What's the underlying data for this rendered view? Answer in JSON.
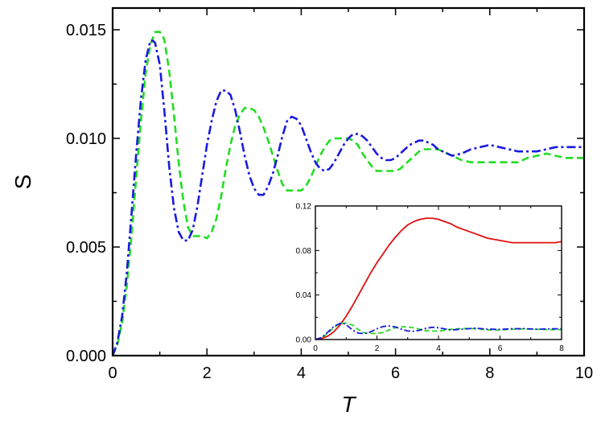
{
  "chart_data": [
    {
      "type": "line",
      "role": "main",
      "title": "",
      "xlabel": "T",
      "ylabel": "S",
      "xlim": [
        0,
        10
      ],
      "ylim": [
        0,
        0.016
      ],
      "xticks": [
        0,
        2,
        4,
        6,
        8,
        10
      ],
      "xtick_labels": [
        "0",
        "2",
        "4",
        "6",
        "8",
        "10"
      ],
      "yticks": [
        0,
        0.005,
        0.01,
        0.015
      ],
      "ytick_labels": [
        "0.000",
        "0.005",
        "0.010",
        "0.015"
      ],
      "grid": false,
      "legend": "none",
      "series": [
        {
          "color": "#22dd22",
          "style": "dashed",
          "x": [
            0,
            0.1,
            0.2,
            0.3,
            0.4,
            0.5,
            0.6,
            0.7,
            0.8,
            0.9,
            1.0,
            1.05,
            1.1,
            1.2,
            1.3,
            1.4,
            1.5,
            1.6,
            1.7,
            1.8,
            1.9,
            2.0,
            2.1,
            2.2,
            2.3,
            2.4,
            2.5,
            2.6,
            2.7,
            2.8,
            2.9,
            3.0,
            3.1,
            3.2,
            3.3,
            3.4,
            3.5,
            3.6,
            3.7,
            3.8,
            3.9,
            4.0,
            4.1,
            4.2,
            4.3,
            4.4,
            4.5,
            4.6,
            4.7,
            4.8,
            4.9,
            5.0,
            5.1,
            5.2,
            5.3,
            5.4,
            5.5,
            5.6,
            5.7,
            5.8,
            5.9,
            6.0,
            6.1,
            6.2,
            6.3,
            6.4,
            6.5,
            6.6,
            6.7,
            6.8,
            6.9,
            7.0,
            7.2,
            7.4,
            7.6,
            7.8,
            8.0,
            8.2,
            8.4,
            8.6,
            8.8,
            9.0,
            9.2,
            9.4,
            9.6,
            9.8,
            10.0
          ],
          "y": [
            0.0,
            0.0005,
            0.0015,
            0.0032,
            0.0055,
            0.0082,
            0.0108,
            0.013,
            0.0143,
            0.0149,
            0.0149,
            0.0148,
            0.0145,
            0.0131,
            0.0111,
            0.0089,
            0.0071,
            0.0059,
            0.0055,
            0.0055,
            0.0055,
            0.0054,
            0.0057,
            0.0063,
            0.0073,
            0.0086,
            0.0097,
            0.0106,
            0.0111,
            0.0114,
            0.0114,
            0.0113,
            0.011,
            0.0105,
            0.0099,
            0.0092,
            0.0085,
            0.0079,
            0.0076,
            0.0076,
            0.0076,
            0.0076,
            0.0078,
            0.0082,
            0.0087,
            0.0092,
            0.0096,
            0.0099,
            0.01,
            0.01,
            0.01,
            0.01,
            0.0099,
            0.0097,
            0.0093,
            0.009,
            0.0087,
            0.0085,
            0.0085,
            0.0085,
            0.0085,
            0.0085,
            0.0086,
            0.0088,
            0.009,
            0.0092,
            0.0094,
            0.0095,
            0.0095,
            0.0095,
            0.0095,
            0.0094,
            0.0092,
            0.009,
            0.0089,
            0.0089,
            0.0089,
            0.0089,
            0.0089,
            0.0089,
            0.0091,
            0.0092,
            0.0093,
            0.0092,
            0.0091,
            0.0091,
            0.0091
          ]
        },
        {
          "color": "#1a1adf",
          "style": "dashdot",
          "x": [
            0,
            0.1,
            0.2,
            0.3,
            0.4,
            0.5,
            0.6,
            0.7,
            0.8,
            0.85,
            0.9,
            1.0,
            1.1,
            1.2,
            1.3,
            1.4,
            1.5,
            1.6,
            1.7,
            1.8,
            1.9,
            2.0,
            2.1,
            2.2,
            2.3,
            2.4,
            2.5,
            2.6,
            2.7,
            2.8,
            2.9,
            3.0,
            3.1,
            3.2,
            3.3,
            3.4,
            3.5,
            3.6,
            3.7,
            3.8,
            3.9,
            4.0,
            4.1,
            4.2,
            4.3,
            4.4,
            4.5,
            4.6,
            4.7,
            4.8,
            4.9,
            5.0,
            5.1,
            5.2,
            5.3,
            5.4,
            5.5,
            5.6,
            5.7,
            5.8,
            5.9,
            6.0,
            6.1,
            6.2,
            6.3,
            6.4,
            6.5,
            6.6,
            6.7,
            6.8,
            6.9,
            7.0,
            7.2,
            7.4,
            7.6,
            7.8,
            8.0,
            8.2,
            8.4,
            8.6,
            8.8,
            9.0,
            9.2,
            9.4,
            9.6,
            9.8,
            10.0
          ],
          "y": [
            0.0,
            0.0006,
            0.0018,
            0.0038,
            0.0065,
            0.0093,
            0.0118,
            0.0136,
            0.0145,
            0.0145,
            0.0144,
            0.0134,
            0.0112,
            0.0087,
            0.0068,
            0.0057,
            0.0053,
            0.0053,
            0.0058,
            0.0069,
            0.0083,
            0.0097,
            0.0108,
            0.0117,
            0.0122,
            0.0122,
            0.012,
            0.0113,
            0.0103,
            0.0092,
            0.0083,
            0.0077,
            0.0074,
            0.0074,
            0.0078,
            0.0084,
            0.0092,
            0.0101,
            0.0108,
            0.011,
            0.0109,
            0.0106,
            0.01,
            0.0094,
            0.0089,
            0.0086,
            0.0085,
            0.0086,
            0.0089,
            0.0093,
            0.0097,
            0.01,
            0.0102,
            0.0102,
            0.0101,
            0.0099,
            0.0096,
            0.0093,
            0.0091,
            0.009,
            0.009,
            0.0091,
            0.0093,
            0.0095,
            0.0097,
            0.0098,
            0.0099,
            0.0099,
            0.0098,
            0.0097,
            0.0095,
            0.0094,
            0.0092,
            0.0093,
            0.0095,
            0.0096,
            0.0097,
            0.0096,
            0.0095,
            0.0094,
            0.0094,
            0.0094,
            0.0095,
            0.0096,
            0.0096,
            0.0096,
            0.0096
          ]
        }
      ]
    },
    {
      "type": "line",
      "role": "inset",
      "title": "",
      "xlabel": "",
      "ylabel": "",
      "xlim": [
        0,
        8
      ],
      "ylim": [
        0,
        0.12
      ],
      "xticks": [
        0,
        2,
        4,
        6,
        8
      ],
      "xtick_labels": [
        "0",
        "2",
        "4",
        "6",
        "8"
      ],
      "yticks": [
        0,
        0.04,
        0.08,
        0.12
      ],
      "ytick_labels": [
        "0.00",
        "0.04",
        "0.08",
        "0.12"
      ],
      "grid": false,
      "legend": "none",
      "series": [
        {
          "color": "#e01010",
          "style": "solid",
          "x": [
            0,
            0.2,
            0.4,
            0.6,
            0.8,
            1.0,
            1.2,
            1.4,
            1.6,
            1.8,
            2.0,
            2.2,
            2.4,
            2.6,
            2.8,
            3.0,
            3.2,
            3.4,
            3.6,
            3.8,
            4.0,
            4.2,
            4.4,
            4.6,
            4.8,
            5.0,
            5.2,
            5.4,
            5.6,
            5.8,
            6.0,
            6.2,
            6.4,
            6.6,
            6.8,
            7.0,
            7.2,
            7.4,
            7.6,
            7.8,
            8.0
          ],
          "y": [
            0.0,
            0.001,
            0.003,
            0.007,
            0.013,
            0.021,
            0.03,
            0.04,
            0.05,
            0.06,
            0.069,
            0.077,
            0.085,
            0.092,
            0.098,
            0.103,
            0.106,
            0.108,
            0.109,
            0.109,
            0.108,
            0.106,
            0.104,
            0.101,
            0.099,
            0.097,
            0.095,
            0.093,
            0.091,
            0.09,
            0.089,
            0.088,
            0.087,
            0.087,
            0.087,
            0.087,
            0.087,
            0.087,
            0.087,
            0.087,
            0.088
          ]
        },
        {
          "color": "#22dd22",
          "style": "dashed",
          "x": [
            0,
            0.2,
            0.4,
            0.6,
            0.8,
            1.0,
            1.2,
            1.4,
            1.6,
            1.8,
            2.0,
            2.2,
            2.4,
            2.6,
            2.8,
            3.0,
            3.2,
            3.4,
            3.6,
            3.8,
            4.0,
            4.4,
            4.8,
            5.2,
            5.6,
            6.0,
            6.4,
            6.8,
            7.2,
            7.6,
            8.0
          ],
          "y": [
            0.0,
            0.0015,
            0.0055,
            0.0108,
            0.0143,
            0.0149,
            0.0131,
            0.0089,
            0.0059,
            0.0055,
            0.0054,
            0.0063,
            0.0086,
            0.0106,
            0.0114,
            0.0113,
            0.0105,
            0.0092,
            0.0079,
            0.0076,
            0.0076,
            0.0092,
            0.01,
            0.0097,
            0.0087,
            0.0085,
            0.0092,
            0.0095,
            0.0092,
            0.0089,
            0.0089
          ]
        },
        {
          "color": "#1a1adf",
          "style": "dashdot",
          "x": [
            0,
            0.2,
            0.4,
            0.6,
            0.8,
            0.9,
            1.0,
            1.2,
            1.4,
            1.6,
            1.8,
            2.0,
            2.2,
            2.4,
            2.6,
            2.8,
            3.0,
            3.2,
            3.4,
            3.6,
            3.8,
            4.0,
            4.4,
            4.8,
            5.2,
            5.6,
            6.0,
            6.4,
            6.8,
            7.2,
            7.6,
            8.0
          ],
          "y": [
            0.0,
            0.0018,
            0.0065,
            0.0118,
            0.0145,
            0.0144,
            0.0134,
            0.0087,
            0.0057,
            0.0053,
            0.0069,
            0.0097,
            0.0117,
            0.0122,
            0.0113,
            0.0092,
            0.0077,
            0.0074,
            0.0084,
            0.0101,
            0.011,
            0.0106,
            0.0086,
            0.0093,
            0.0102,
            0.0093,
            0.0091,
            0.0097,
            0.0098,
            0.0092,
            0.0096,
            0.0097
          ]
        }
      ]
    }
  ]
}
